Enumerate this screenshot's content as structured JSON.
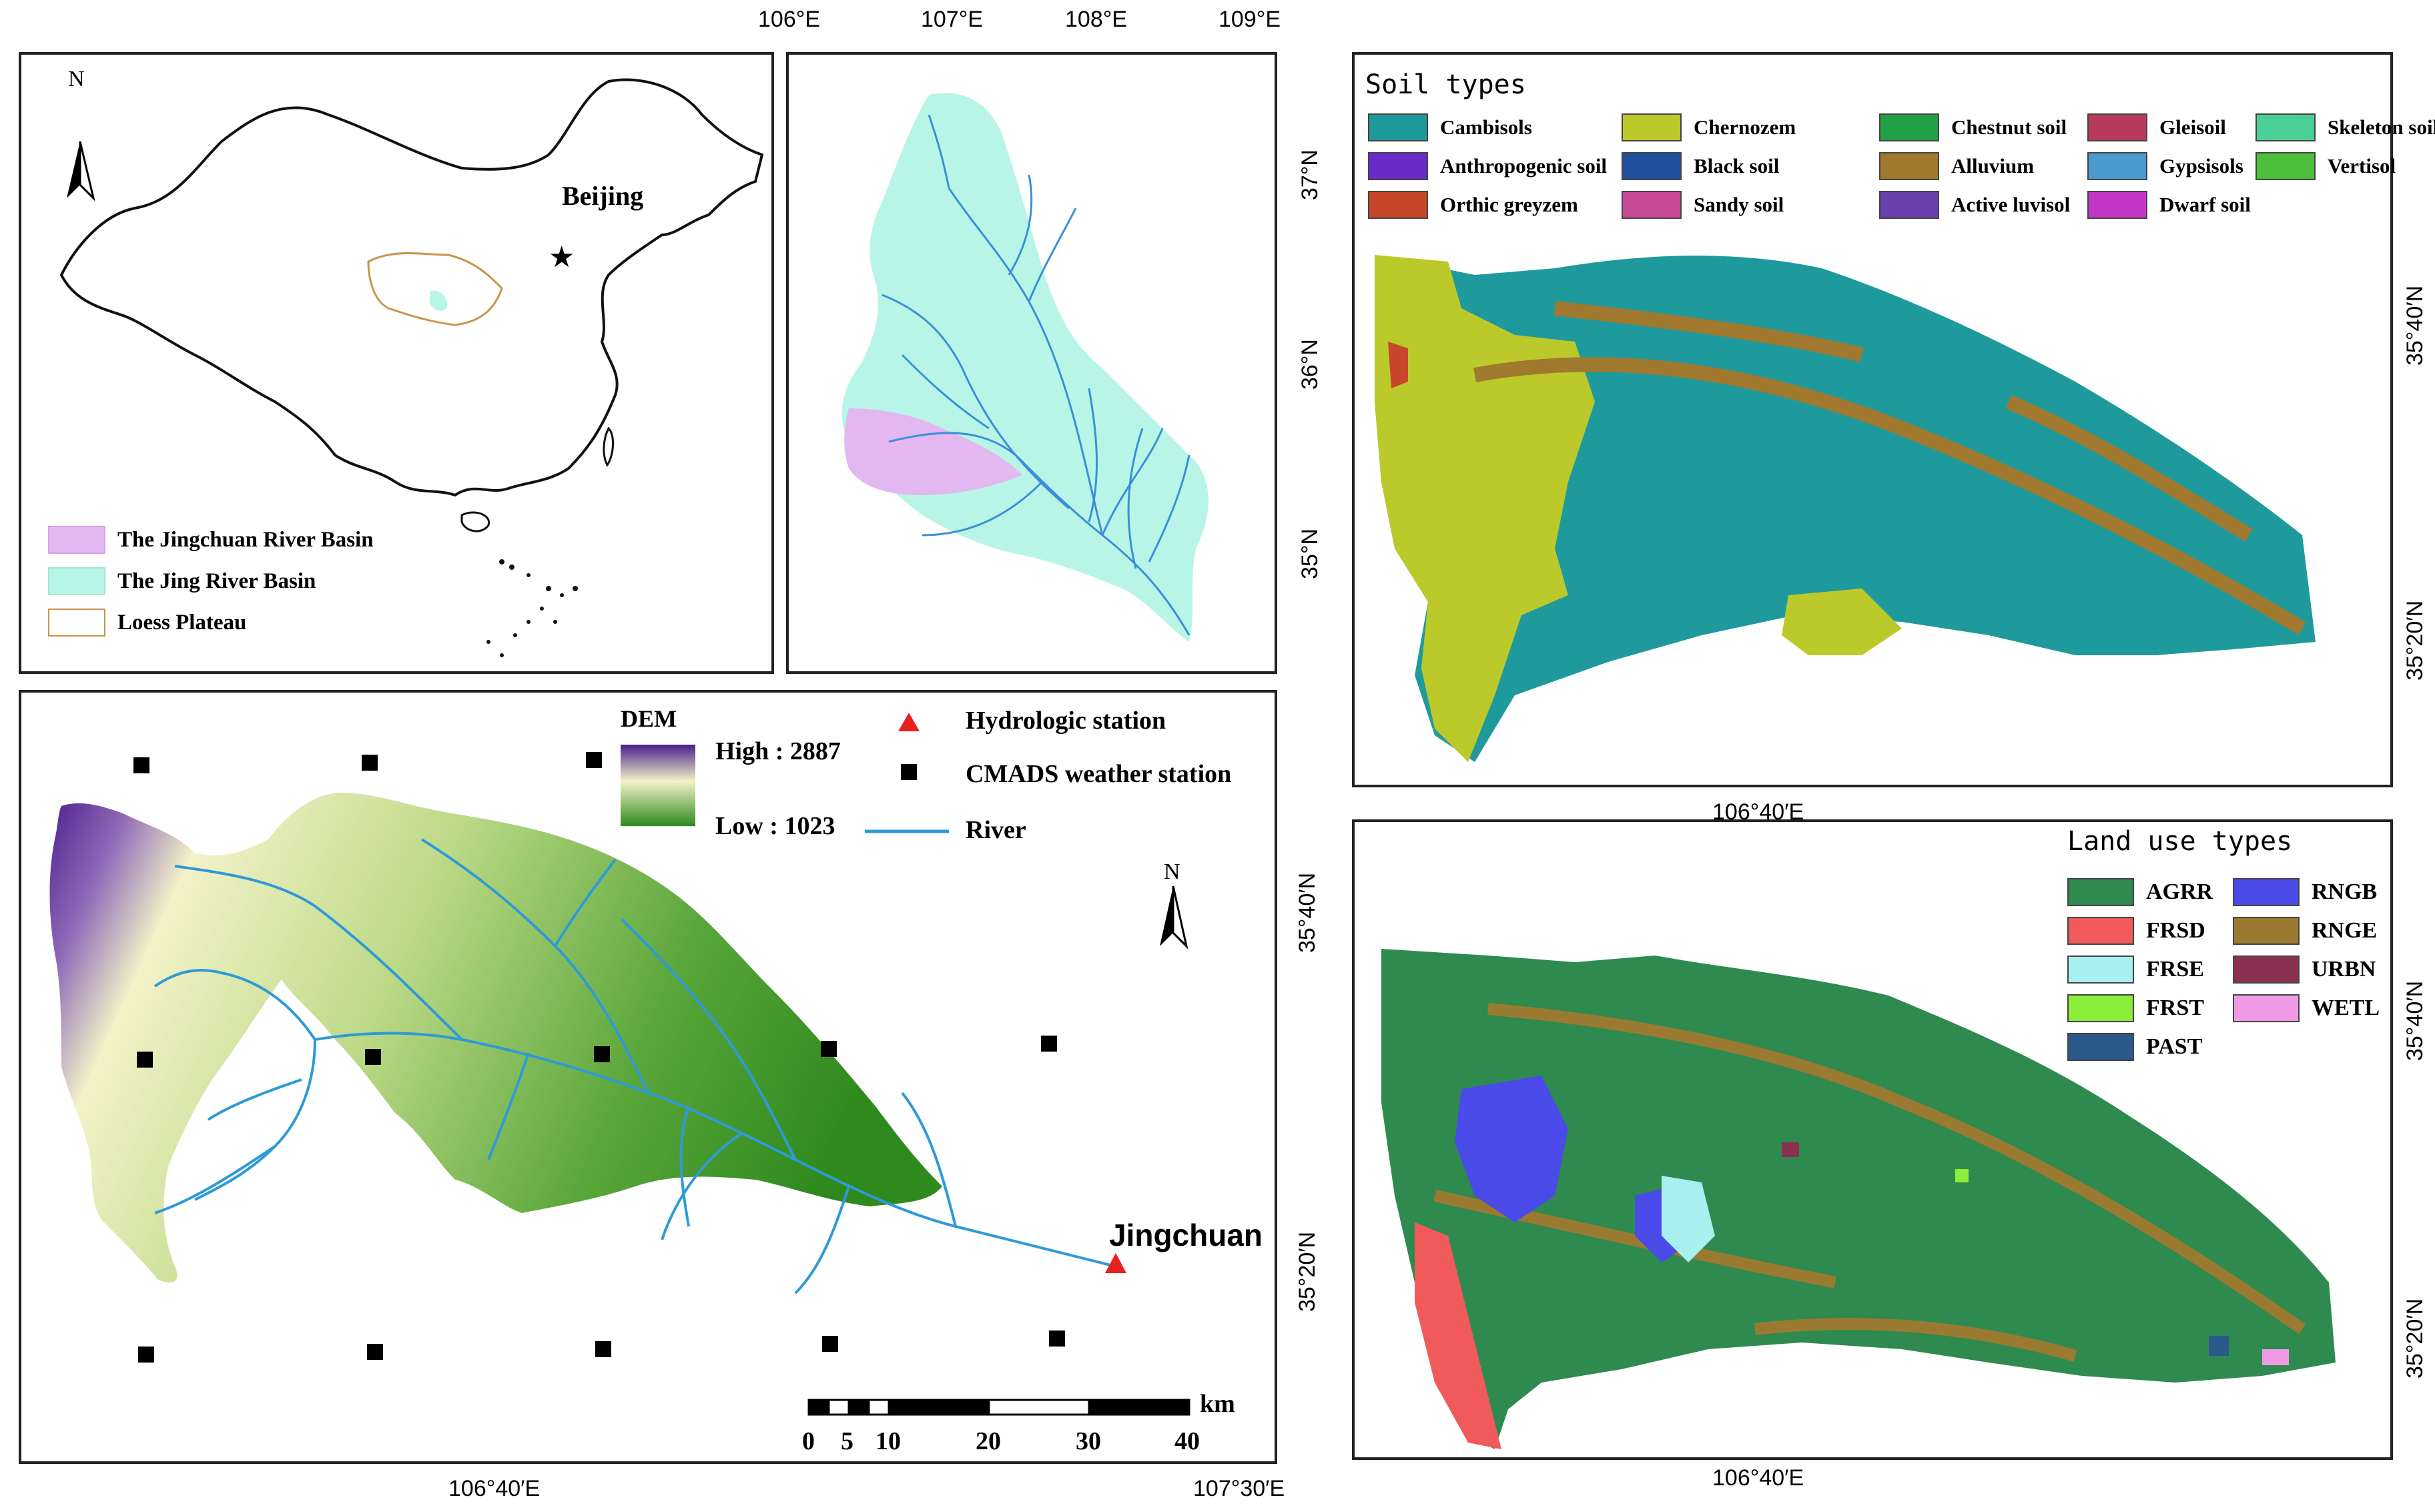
{
  "china_panel": {
    "legend": [
      {
        "label": "The Jingchuan River Basin",
        "color": "#e3b8f0",
        "border": "#d1a3e8"
      },
      {
        "label": "The Jing River Basin",
        "color": "#b8f5e6",
        "border": "#9fe8d6"
      },
      {
        "label": "Loess Plateau",
        "color": "#ffffff",
        "border": "#c9954a"
      }
    ],
    "city_label": "Beijing",
    "north_label": "N"
  },
  "jing_panel": {
    "top_ticks": [
      "106°E",
      "107°E",
      "108°E",
      "109°E"
    ],
    "right_ticks": [
      "37°N",
      "36°N",
      "35°N"
    ]
  },
  "dem_panel": {
    "legend_title": "DEM",
    "high_label": "High : 2887",
    "low_label": "Low : 1023",
    "hydro_label": "Hydrologic station",
    "cmads_label": "CMADS weather station",
    "river_label": "River",
    "outlet_label": "Jingchuan",
    "north_label": "N",
    "scale_unit": "km",
    "scale_labels": [
      "0",
      "5",
      "10",
      "20",
      "30",
      "40"
    ],
    "bottom_ticks": [
      "106°40′E",
      "107°30′E"
    ],
    "right_ticks": [
      "35°40′N",
      "35°20′N"
    ],
    "colors": {
      "high": "#5b2a9a",
      "mid": "#f3f2b8",
      "low": "#2f8a1e",
      "river": "#2e9ad8",
      "hydro": "#e82020"
    }
  },
  "soil_panel": {
    "title": "Soil types",
    "legend": [
      {
        "label": "Cambisols",
        "color": "#1f9a9c"
      },
      {
        "label": "Chernozem",
        "color": "#bcc92a"
      },
      {
        "label": "Chestnut soil",
        "color": "#22a046"
      },
      {
        "label": "Gleisoil",
        "color": "#b83a5a"
      },
      {
        "label": "Skeleton soil",
        "color": "#4ccf96"
      },
      {
        "label": "Anthropogenic soil",
        "color": "#6a2cc8"
      },
      {
        "label": "Black soil",
        "color": "#23509e"
      },
      {
        "label": "Alluvium",
        "color": "#a0782e"
      },
      {
        "label": "Gypsisols",
        "color": "#4a9ad0"
      },
      {
        "label": "Vertisol",
        "color": "#4cbf3a"
      },
      {
        "label": "Orthic greyzem",
        "color": "#c8462a"
      },
      {
        "label": "Sandy soil",
        "color": "#c84a96"
      },
      {
        "label": "Active luvisol",
        "color": "#6a3fae"
      },
      {
        "label": "Dwarf soil",
        "color": "#c436c8"
      }
    ],
    "bottom_tick": "106°40′E",
    "right_ticks": [
      "35°40′N",
      "35°20′N"
    ]
  },
  "landuse_panel": {
    "title": "Land use types",
    "legend": [
      {
        "label": "AGRR",
        "color": "#2f8a50"
      },
      {
        "label": "RNGB",
        "color": "#4a4ae8"
      },
      {
        "label": "FRSD",
        "color": "#f05a5a"
      },
      {
        "label": "RNGE",
        "color": "#9a7a30"
      },
      {
        "label": "FRSE",
        "color": "#a8f0f0"
      },
      {
        "label": "URBN",
        "color": "#8a3050"
      },
      {
        "label": "FRST",
        "color": "#8aee3a"
      },
      {
        "label": "WETL",
        "color": "#f09ae6"
      },
      {
        "label": "PAST",
        "color": "#2a5a8a"
      }
    ],
    "bottom_tick": "106°40′E",
    "right_ticks": [
      "35°40′N",
      "35°20′N"
    ]
  }
}
